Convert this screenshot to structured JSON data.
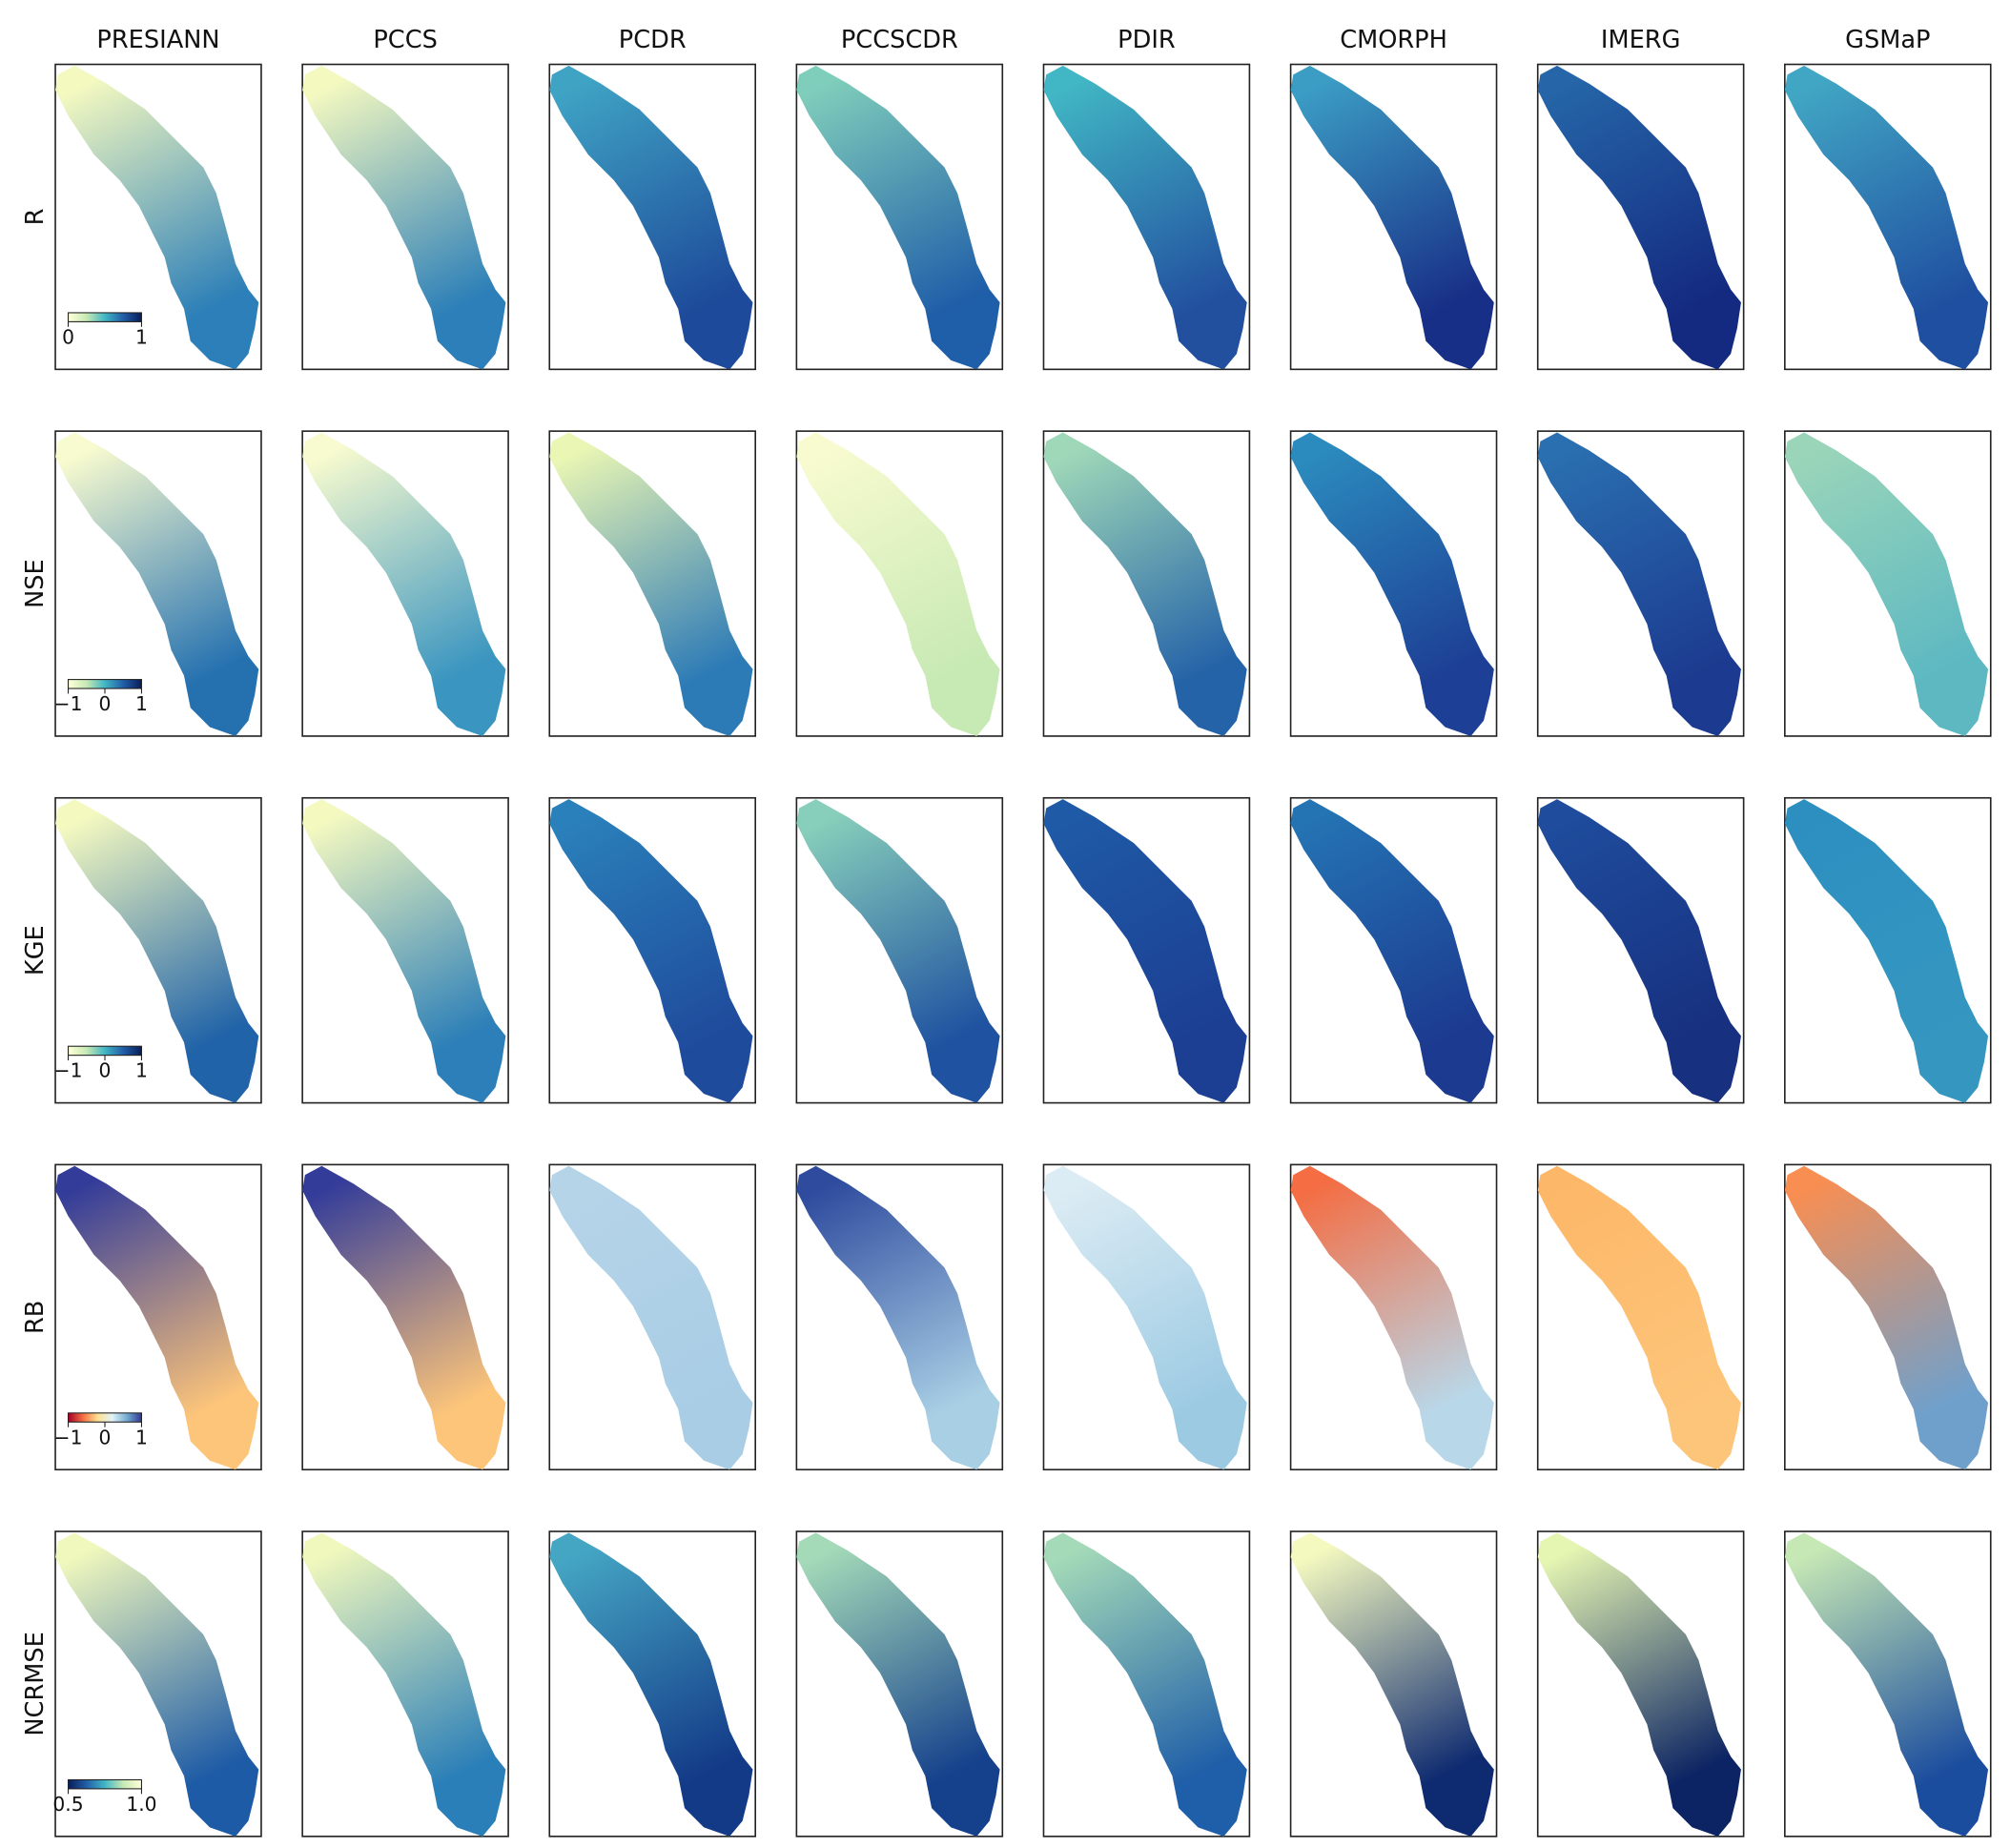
{
  "columns": [
    "PRESIANN",
    "PCCS",
    "PCDR",
    "PCCSCDR",
    "PDIR",
    "CMORPH",
    "IMERG",
    "GSMaP"
  ],
  "rows": [
    {
      "label": "R",
      "colorbar": {
        "lim": [
          0,
          1
        ],
        "ticks": [
          0,
          1
        ],
        "colormap": [
          "#ffffd9",
          "#c7e9b4",
          "#41b6c4",
          "#225ea8",
          "#081d58"
        ]
      },
      "colors": [
        [
          "#f4f9c0",
          "#2c7fb8"
        ],
        [
          "#f4f9c0",
          "#2c7fb8"
        ],
        [
          "#3fa3c4",
          "#1d4a9a"
        ],
        [
          "#7fcdbb",
          "#1f5ea8"
        ],
        [
          "#41b6c4",
          "#22509f"
        ],
        [
          "#3b9cc4",
          "#182f87"
        ],
        [
          "#2565a8",
          "#142a80"
        ],
        [
          "#41a6c4",
          "#1f4fa0"
        ]
      ]
    },
    {
      "label": "NSE",
      "colorbar": {
        "lim": [
          -1,
          1
        ],
        "ticks": [
          {
            "value": -1,
            "label": "−1"
          },
          0,
          1
        ],
        "colormap": [
          "#ffffd9",
          "#c7e9b4",
          "#41b6c4",
          "#225ea8",
          "#081d58"
        ]
      },
      "colors": [
        [
          "#f8fbcf",
          "#2571b0"
        ],
        [
          "#f8fbcf",
          "#3a95c0"
        ],
        [
          "#e9f6b4",
          "#2d7bb6"
        ],
        [
          "#f8fbcf",
          "#c7e9b4"
        ],
        [
          "#9fd8b8",
          "#2563a8"
        ],
        [
          "#2b8bbe",
          "#1d3f95"
        ],
        [
          "#2a6fb0",
          "#1c3b90"
        ],
        [
          "#9ad5b9",
          "#5db8c2"
        ]
      ]
    },
    {
      "label": "KGE",
      "colorbar": {
        "lim": [
          -1,
          1
        ],
        "ticks": [
          {
            "value": -1,
            "label": "−1"
          },
          0,
          1
        ],
        "colormap": [
          "#ffffd9",
          "#c7e9b4",
          "#41b6c4",
          "#225ea8",
          "#081d58"
        ]
      },
      "colors": [
        [
          "#f4f9c0",
          "#2063a8"
        ],
        [
          "#f4f9c0",
          "#2c7fb8"
        ],
        [
          "#2a80ba",
          "#1f4b9c"
        ],
        [
          "#88cfbb",
          "#1f52a0"
        ],
        [
          "#1f5aa6",
          "#1c3e93"
        ],
        [
          "#2473b3",
          "#1c3a90"
        ],
        [
          "#1f4c9d",
          "#17307f"
        ],
        [
          "#2d8fc0",
          "#3597c0"
        ]
      ]
    },
    {
      "label": "RB",
      "colorbar": {
        "lim": [
          -1,
          1
        ],
        "ticks": [
          {
            "value": -1,
            "label": "−1"
          },
          0,
          1
        ],
        "colormap": [
          "#a50026",
          "#f46d43",
          "#fee090",
          "#e0f3f8",
          "#74add1",
          "#313695"
        ]
      },
      "colors": [
        [
          "#333c99",
          "#fdc57a"
        ],
        [
          "#333c99",
          "#fdc57a"
        ],
        [
          "#b6d4e8",
          "#a8cde5"
        ],
        [
          "#2e4b9e",
          "#a9cfe5"
        ],
        [
          "#dcecf4",
          "#9ccae3"
        ],
        [
          "#f46d43",
          "#b8d8ea"
        ],
        [
          "#fdb768",
          "#fdc57a"
        ],
        [
          "#f88e52",
          "#6fa0cc"
        ]
      ]
    },
    {
      "label": "NCRMSE",
      "colorbar": {
        "lim": [
          0.5,
          1
        ],
        "ticks": [
          0.5,
          {
            "value": 1,
            "label": "1.0"
          }
        ],
        "colormap": [
          "#081d58",
          "#225ea8",
          "#41b6c4",
          "#c7e9b4",
          "#ffffd9"
        ]
      },
      "colors": [
        [
          "#f0f8bd",
          "#1e5ba6"
        ],
        [
          "#f0f8bd",
          "#2b7fb8"
        ],
        [
          "#45a6c4",
          "#133a87"
        ],
        [
          "#a4dab8",
          "#15408c"
        ],
        [
          "#a4dab8",
          "#1f5ea8"
        ],
        [
          "#f4f9c0",
          "#0e2a70"
        ],
        [
          "#e5f5b2",
          "#0c2463"
        ],
        [
          "#c6e8b5",
          "#1b4d9e"
        ]
      ]
    }
  ]
}
